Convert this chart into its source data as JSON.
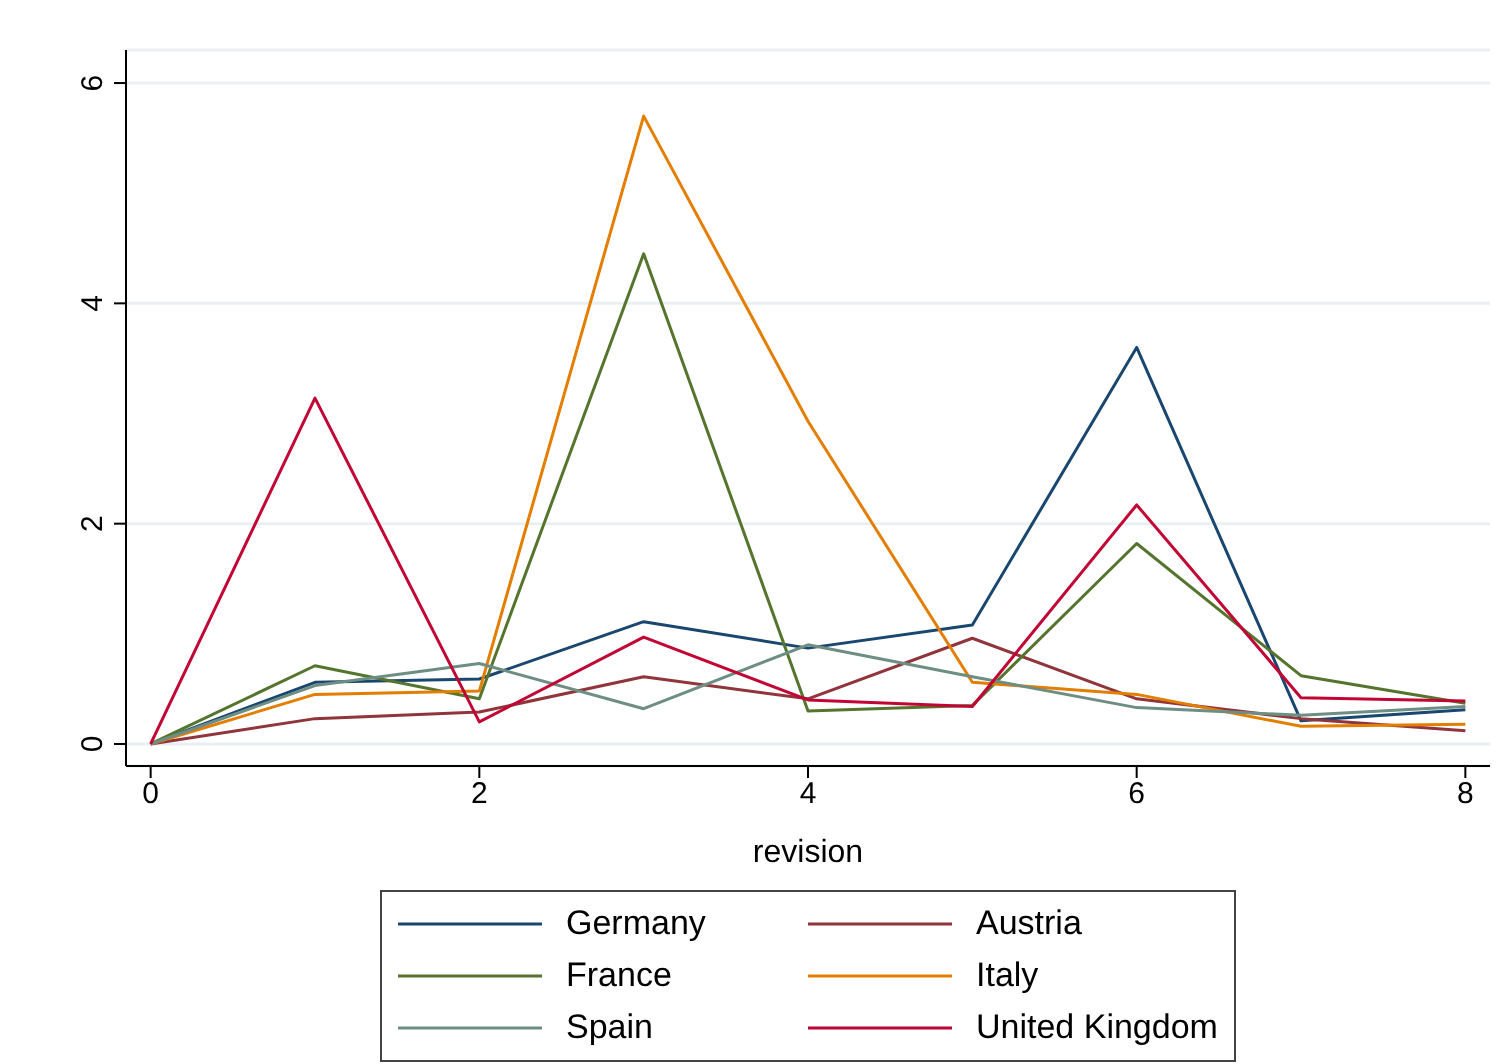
{
  "chart_data": {
    "type": "line",
    "xlabel": "revision",
    "x": [
      0,
      1,
      2,
      3,
      4,
      5,
      6,
      7,
      8
    ],
    "series": [
      {
        "name": "Germany",
        "color": "#1a476f",
        "values": [
          0,
          0.56,
          0.59,
          1.11,
          0.87,
          1.08,
          3.6,
          0.21,
          0.31
        ]
      },
      {
        "name": "Austria",
        "color": "#90353b",
        "values": [
          0,
          0.23,
          0.29,
          0.61,
          0.41,
          0.96,
          0.41,
          0.23,
          0.12
        ]
      },
      {
        "name": "France",
        "color": "#55752f",
        "values": [
          0,
          0.71,
          0.41,
          4.45,
          0.3,
          0.35,
          1.82,
          0.62,
          0.37
        ]
      },
      {
        "name": "Italy",
        "color": "#e37e00",
        "values": [
          0,
          0.45,
          0.48,
          5.7,
          2.93,
          0.56,
          0.45,
          0.16,
          0.18
        ]
      },
      {
        "name": "Spain",
        "color": "#6e8e84",
        "values": [
          0,
          0.53,
          0.73,
          0.32,
          0.9,
          0.61,
          0.33,
          0.26,
          0.34
        ]
      },
      {
        "name": "United Kingdom",
        "color": "#c10534",
        "values": [
          0,
          3.14,
          0.2,
          0.97,
          0.4,
          0.34,
          2.17,
          0.42,
          0.39
        ]
      }
    ],
    "xlim": [
      -0.15,
      8.15
    ],
    "xticks": [
      0,
      2,
      4,
      6,
      8
    ],
    "ylim": [
      -0.2,
      6.3
    ],
    "yticks": [
      0,
      2,
      4,
      6
    ],
    "grid": "y",
    "legend": "bottom",
    "marker": "none",
    "line_style": "solid"
  }
}
